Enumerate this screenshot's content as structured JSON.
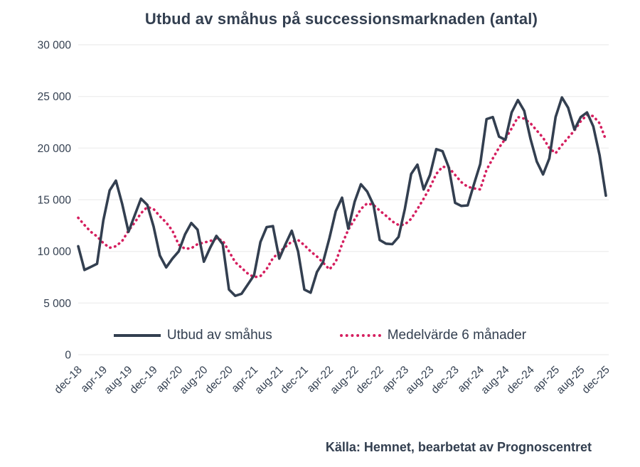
{
  "title": "Utbud av småhus på successionsmarknaden (antal)",
  "source": "Källa: Hemnet, bearbetat av Prognoscentret",
  "legend": {
    "series1": "Utbud av småhus",
    "series2": "Medelvärde 6 månader"
  },
  "colors": {
    "line": "#333F50",
    "average": "#D51F5F",
    "grid": "#EFEFEF",
    "text": "#333F50",
    "background": "#FFFFFF"
  },
  "chart_data": {
    "type": "line",
    "title": "Utbud av småhus på successionsmarknaden (antal)",
    "xlabel": "",
    "ylabel": "",
    "ylim": [
      0,
      30000
    ],
    "grid": "horizontal",
    "legend_position": "bottom-inside",
    "y_ticks": [
      {
        "value": 0,
        "label": "0"
      },
      {
        "value": 5000,
        "label": "5 000"
      },
      {
        "value": 10000,
        "label": "10 000"
      },
      {
        "value": 15000,
        "label": "15 000"
      },
      {
        "value": 20000,
        "label": "20 000"
      },
      {
        "value": 25000,
        "label": "25 000"
      },
      {
        "value": 30000,
        "label": "30 000"
      }
    ],
    "x_tick_every": 4,
    "x_tick_labels": [
      "dec-18",
      "apr-19",
      "aug-19",
      "dec-19",
      "apr-20",
      "aug-20",
      "dec-20",
      "apr-21",
      "aug-21",
      "dec-21",
      "apr-22",
      "aug-22",
      "dec-22",
      "apr-23",
      "aug-23",
      "dec-23",
      "apr-24",
      "aug-24",
      "dec-24",
      "apr-25",
      "aug-25",
      "dec-25"
    ],
    "categories": [
      "dec-18",
      "jan-19",
      "feb-19",
      "mar-19",
      "apr-19",
      "maj-19",
      "jun-19",
      "jul-19",
      "aug-19",
      "sep-19",
      "okt-19",
      "nov-19",
      "dec-19",
      "jan-20",
      "feb-20",
      "mar-20",
      "apr-20",
      "maj-20",
      "jun-20",
      "jul-20",
      "aug-20",
      "sep-20",
      "okt-20",
      "nov-20",
      "dec-20",
      "jan-21",
      "feb-21",
      "mar-21",
      "apr-21",
      "maj-21",
      "jun-21",
      "jul-21",
      "aug-21",
      "sep-21",
      "okt-21",
      "nov-21",
      "dec-21",
      "jan-22",
      "feb-22",
      "mar-22",
      "apr-22",
      "maj-22",
      "jun-22",
      "jul-22",
      "aug-22",
      "sep-22",
      "okt-22",
      "nov-22",
      "dec-22",
      "jan-23",
      "feb-23",
      "mar-23",
      "apr-23",
      "maj-23",
      "jun-23",
      "jul-23",
      "aug-23",
      "sep-23",
      "okt-23",
      "nov-23",
      "dec-23",
      "jan-24",
      "feb-24",
      "mar-24",
      "apr-24",
      "maj-24",
      "jun-24",
      "jul-24",
      "aug-24",
      "sep-24",
      "okt-24",
      "nov-24",
      "dec-24",
      "jan-25",
      "feb-25",
      "mar-25",
      "apr-25",
      "maj-25",
      "jun-25",
      "jul-25",
      "aug-25",
      "sep-25",
      "okt-25",
      "nov-25",
      "dec-25"
    ],
    "series": [
      {
        "name": "Utbud av småhus",
        "style": "solid",
        "color": "#333F50",
        "values": [
          10500,
          8200,
          8500,
          8800,
          13000,
          15900,
          16850,
          14600,
          11900,
          13500,
          15100,
          14500,
          12400,
          9600,
          8450,
          9300,
          10000,
          11650,
          12750,
          12100,
          9000,
          10350,
          11500,
          10700,
          6300,
          5700,
          5900,
          6800,
          7700,
          10900,
          12350,
          12450,
          9300,
          10700,
          12000,
          10000,
          6300,
          6000,
          8000,
          9000,
          11300,
          13900,
          15200,
          12200,
          14800,
          16500,
          15800,
          14500,
          11100,
          10750,
          10700,
          11400,
          14100,
          17500,
          18400,
          16000,
          17400,
          19900,
          19700,
          18100,
          14700,
          14400,
          14450,
          16500,
          18450,
          22800,
          23000,
          21100,
          20800,
          23450,
          24650,
          23600,
          20900,
          18700,
          17450,
          19000,
          23000,
          24900,
          23900,
          21800,
          23000,
          23450,
          22100,
          19300,
          15400
        ]
      },
      {
        "name": "Medelvärde 6 månader",
        "style": "dotted",
        "color": "#D51F5F",
        "values": [
          13250,
          12550,
          11900,
          11450,
          10800,
          10350,
          10500,
          11000,
          12000,
          12800,
          13700,
          14300,
          14100,
          13400,
          12800,
          12000,
          10650,
          10250,
          10300,
          10700,
          10850,
          11000,
          11250,
          11050,
          10000,
          8950,
          8400,
          7850,
          7500,
          7600,
          8300,
          9350,
          9900,
          10450,
          10950,
          11100,
          10600,
          10000,
          9500,
          8900,
          8250,
          9000,
          10700,
          12100,
          13100,
          14100,
          14650,
          14500,
          13950,
          13450,
          12900,
          12550,
          12600,
          13150,
          14100,
          15100,
          16200,
          17500,
          18200,
          18100,
          17400,
          16700,
          16250,
          16100,
          16000,
          17900,
          19000,
          20050,
          20900,
          21900,
          23000,
          22850,
          22400,
          21700,
          21000,
          20000,
          19500,
          20300,
          21000,
          21700,
          22600,
          23200,
          23100,
          22400,
          20800
        ]
      }
    ]
  }
}
